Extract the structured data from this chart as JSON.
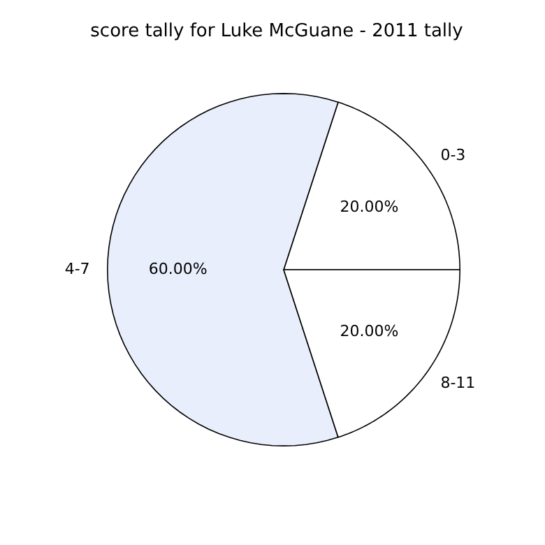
{
  "chart_data": {
    "type": "pie",
    "title": "score tally for Luke McGuane - 2011 tally",
    "categories": [
      "0-3",
      "4-7",
      "8-11"
    ],
    "values": [
      20,
      60,
      20
    ],
    "colors": [
      "#ffffff",
      "#e8eefb",
      "#ffffff"
    ],
    "value_labels": [
      "20.00%",
      "60.00%",
      "20.00%"
    ]
  }
}
